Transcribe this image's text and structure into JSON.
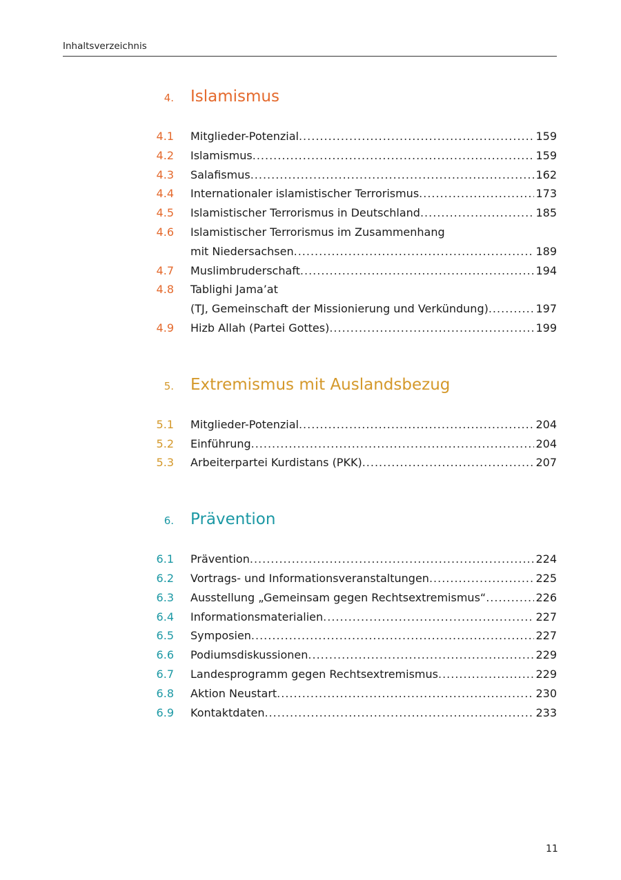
{
  "running_header": "Inhaltsverzeichnis",
  "page_number": "11",
  "colors": {
    "section4": "#e4692c",
    "section5": "#d4982a",
    "section6": "#1b98a4"
  },
  "sections": [
    {
      "number": "4.",
      "title": "Islamismus",
      "entries": [
        {
          "num": "4.1",
          "lines": [],
          "last": "Mitglieder-Potenzial",
          "page": "159"
        },
        {
          "num": "4.2",
          "lines": [],
          "last": "Islamismus",
          "page": "159"
        },
        {
          "num": "4.3",
          "lines": [],
          "last": "Salafismus",
          "page": "162"
        },
        {
          "num": "4.4",
          "lines": [],
          "last": "Internationaler islamistischer Terrorismus",
          "page": "173"
        },
        {
          "num": "4.5",
          "lines": [],
          "last": "Islamistischer Terrorismus in Deutschland",
          "page": "185"
        },
        {
          "num": "4.6",
          "lines": [
            "Islamistischer Terrorismus im Zusammenhang"
          ],
          "last": "mit Niedersachsen",
          "page": "189"
        },
        {
          "num": "4.7",
          "lines": [],
          "last": "Muslimbruderschaft",
          "page": "194"
        },
        {
          "num": "4.8",
          "lines": [
            "Tablighi Jama’at"
          ],
          "last": "(TJ, Gemeinschaft der Missionierung und Verkündung)",
          "page": "197"
        },
        {
          "num": "4.9",
          "lines": [],
          "last": "Hizb Allah (Partei Gottes)",
          "page": "199"
        }
      ]
    },
    {
      "number": "5.",
      "title": "Extremismus mit Auslandsbezug",
      "entries": [
        {
          "num": "5.1",
          "lines": [],
          "last": "Mitglieder-Potenzial",
          "page": "204"
        },
        {
          "num": "5.2",
          "lines": [],
          "last": "Einführung",
          "page": "204"
        },
        {
          "num": "5.3",
          "lines": [],
          "last": "Arbeiterpartei Kurdistans (PKK)",
          "page": "207"
        }
      ]
    },
    {
      "number": "6.",
      "title": "Prävention",
      "entries": [
        {
          "num": "6.1",
          "lines": [],
          "last": "Prävention",
          "page": "224"
        },
        {
          "num": "6.2",
          "lines": [],
          "last": "Vortrags- und Informationsveranstaltungen",
          "page": "225"
        },
        {
          "num": "6.3",
          "lines": [],
          "last": "Ausstellung „Gemeinsam gegen Rechtsextremismus“",
          "page": "226"
        },
        {
          "num": "6.4",
          "lines": [],
          "last": "Informationsmaterialien",
          "page": "227"
        },
        {
          "num": "6.5",
          "lines": [],
          "last": "Symposien",
          "page": "227"
        },
        {
          "num": "6.6",
          "lines": [],
          "last": "Podiumsdiskussionen",
          "page": "229"
        },
        {
          "num": "6.7",
          "lines": [],
          "last": "Landesprogramm gegen Rechtsextremismus",
          "page": "229"
        },
        {
          "num": "6.8",
          "lines": [],
          "last": "Aktion Neustart",
          "page": "230"
        },
        {
          "num": "6.9",
          "lines": [],
          "last": "Kontaktdaten",
          "page": "233"
        }
      ]
    }
  ]
}
